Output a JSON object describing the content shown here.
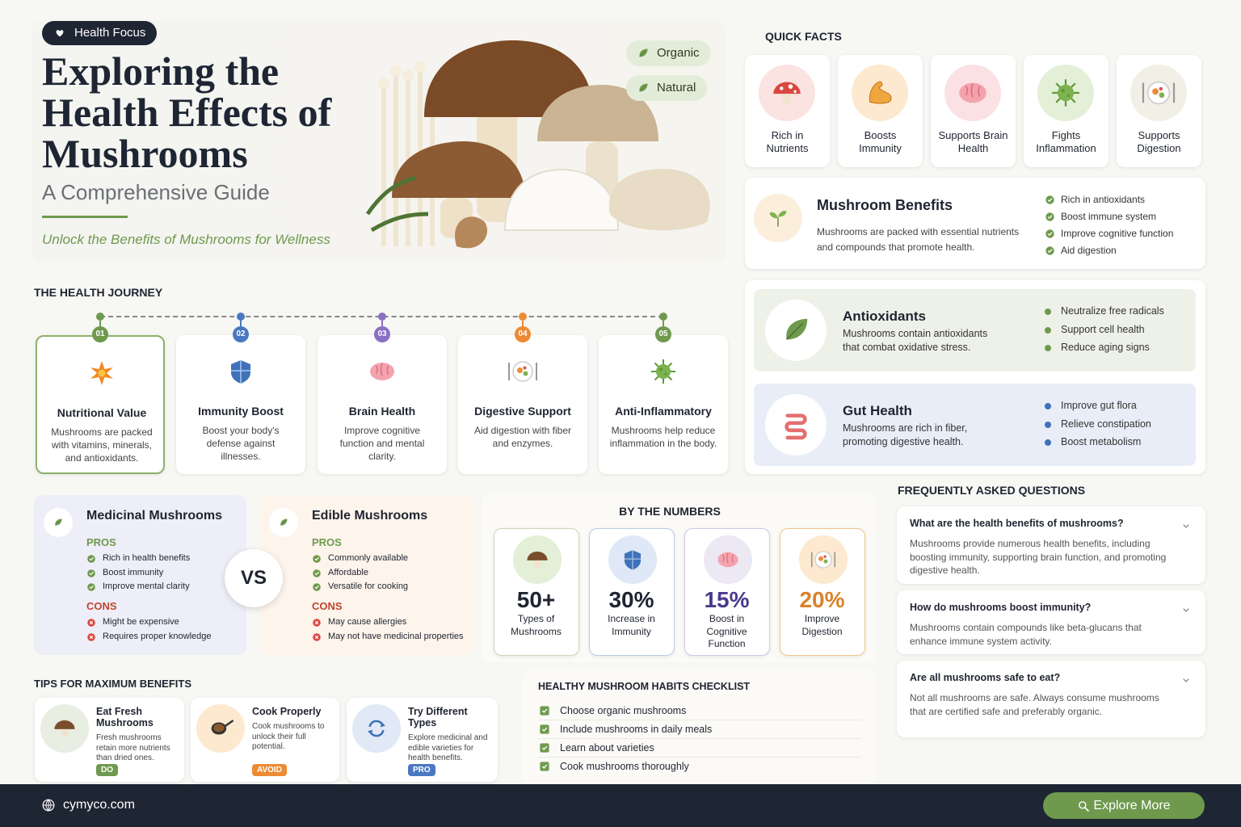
{
  "header": {
    "badge": "Health Focus",
    "title_lines": [
      "Exploring the",
      "Health Effects of",
      "Mushrooms"
    ],
    "subtitle": "A Comprehensive Guide",
    "tagline": "Unlock the Benefits of Mushrooms for Wellness",
    "tags": [
      "Organic",
      "Natural"
    ]
  },
  "quick_facts": {
    "title": "QUICK FACTS",
    "items": [
      "Rich in Nutrients",
      "Boosts Immunity",
      "Supports Brain Health",
      "Fights Inflammation",
      "Supports Digestion"
    ]
  },
  "benefits": {
    "title": "Mushroom Benefits",
    "text": "Mushrooms are packed with essential nutrients and compounds that promote health.",
    "list": [
      "Rich in antioxidants",
      "Boost immune system",
      "Improve cognitive function",
      "Aid digestion"
    ]
  },
  "antioxidants": {
    "title": "Antioxidants",
    "text": "Mushrooms contain antioxidants that combat oxidative stress.",
    "list": [
      "Neutralize free radicals",
      "Support cell health",
      "Reduce aging signs"
    ]
  },
  "gut_health": {
    "title": "Gut Health",
    "text": "Mushrooms are rich in fiber, promoting digestive health.",
    "list": [
      "Improve gut flora",
      "Relieve constipation",
      "Boost metabolism"
    ]
  },
  "journey": {
    "title": "THE HEALTH JOURNEY",
    "steps": [
      {
        "num": "01",
        "title": "Nutritional Value",
        "text": "Mushrooms are packed with vitamins, minerals, and antioxidants."
      },
      {
        "num": "02",
        "title": "Immunity Boost",
        "text": "Boost your body's defense against illnesses."
      },
      {
        "num": "03",
        "title": "Brain Health",
        "text": "Improve cognitive function and mental clarity."
      },
      {
        "num": "04",
        "title": "Digestive Support",
        "text": "Aid digestion with fiber and enzymes."
      },
      {
        "num": "05",
        "title": "Anti-Inflammatory",
        "text": "Mushrooms help reduce inflammation in the body."
      }
    ]
  },
  "comparison": {
    "vs": "VS",
    "cards": [
      {
        "title": "Medicinal Mushrooms",
        "pros_label": "PROS",
        "pros": [
          "Rich in health benefits",
          "Boost immunity",
          "Improve mental clarity"
        ],
        "cons_label": "CONS",
        "cons": [
          "Might be expensive",
          "Requires proper knowledge"
        ]
      },
      {
        "title": "Edible Mushrooms",
        "pros_label": "PROS",
        "pros": [
          "Commonly available",
          "Affordable",
          "Versatile for cooking"
        ],
        "cons_label": "CONS",
        "cons": [
          "May cause allergies",
          "May not have medicinal properties"
        ]
      }
    ]
  },
  "numbers": {
    "title": "BY THE NUMBERS",
    "items": [
      {
        "value": "50+",
        "label": "Types of Mushrooms"
      },
      {
        "value": "30%",
        "label": "Increase in Immunity"
      },
      {
        "value": "15%",
        "label": "Boost in Cognitive Function"
      },
      {
        "value": "20%",
        "label": "Improve Digestion"
      }
    ]
  },
  "faq": {
    "title": "FREQUENTLY ASKED QUESTIONS",
    "items": [
      {
        "q": "What are the health benefits of mushrooms?",
        "a": "Mushrooms provide numerous health benefits, including boosting immunity, supporting brain function, and promoting digestive health."
      },
      {
        "q": "How do mushrooms boost immunity?",
        "a": "Mushrooms contain compounds like beta-glucans that enhance immune system activity."
      },
      {
        "q": "Are all mushrooms safe to eat?",
        "a": "Not all mushrooms are safe. Always consume mushrooms that are certified safe and preferably organic."
      }
    ]
  },
  "tips": {
    "title": "TIPS FOR MAXIMUM BENEFITS",
    "items": [
      {
        "title": "Eat Fresh Mushrooms",
        "text": "Fresh mushrooms retain more nutrients than dried ones.",
        "tag": "DO"
      },
      {
        "title": "Cook Properly",
        "text": "Cook mushrooms to unlock their full potential.",
        "tag": "AVOID"
      },
      {
        "title": "Try Different Types",
        "text": "Explore medicinal and edible varieties for health benefits.",
        "tag": "PRO"
      }
    ]
  },
  "checklist": {
    "title": "HEALTHY MUSHROOM HABITS CHECKLIST",
    "items": [
      "Choose organic mushrooms",
      "Include mushrooms in daily meals",
      "Learn about varieties",
      "Cook mushrooms thoroughly"
    ]
  },
  "footer": {
    "site": "cymyco.com",
    "button": "Explore More"
  }
}
